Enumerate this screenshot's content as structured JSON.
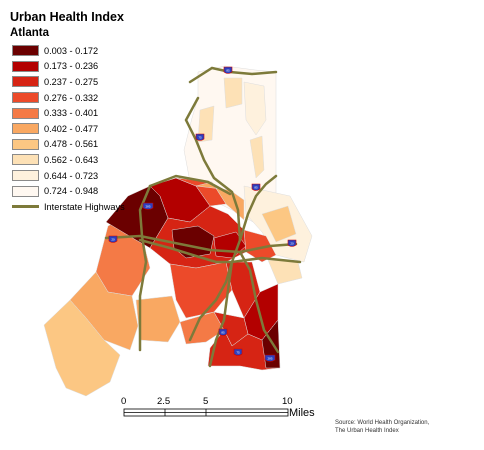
{
  "title": "Urban Health Index",
  "subtitle": "Atlanta",
  "legend": {
    "classes": [
      {
        "label": "0.003 - 0.172",
        "color": "#6b0000"
      },
      {
        "label": "0.173 - 0.236",
        "color": "#b30000"
      },
      {
        "label": "0.237 - 0.275",
        "color": "#d62414"
      },
      {
        "label": "0.276 - 0.332",
        "color": "#ec4a2a"
      },
      {
        "label": "0.333 - 0.401",
        "color": "#f47a46"
      },
      {
        "label": "0.402 - 0.477",
        "color": "#f9a862"
      },
      {
        "label": "0.478 - 0.561",
        "color": "#fcc783"
      },
      {
        "label": "0.562 - 0.643",
        "color": "#fde1b6"
      },
      {
        "label": "0.644 - 0.723",
        "color": "#fef1dd"
      },
      {
        "label": "0.724 - 0.948",
        "color": "#fff8f1"
      }
    ],
    "highway_label": "Interstate Highways",
    "highway_color": "#7d7a3a"
  },
  "highway_shields": [
    "85",
    "75",
    "85",
    "285",
    "20",
    "20",
    "85",
    "75",
    "285"
  ],
  "scale": {
    "ticks": [
      "0",
      "2.5",
      "5",
      "10"
    ],
    "unit": "Miles"
  },
  "source": {
    "line1": "Source: World Health Organization,",
    "line2": "The Urban Health Index"
  }
}
